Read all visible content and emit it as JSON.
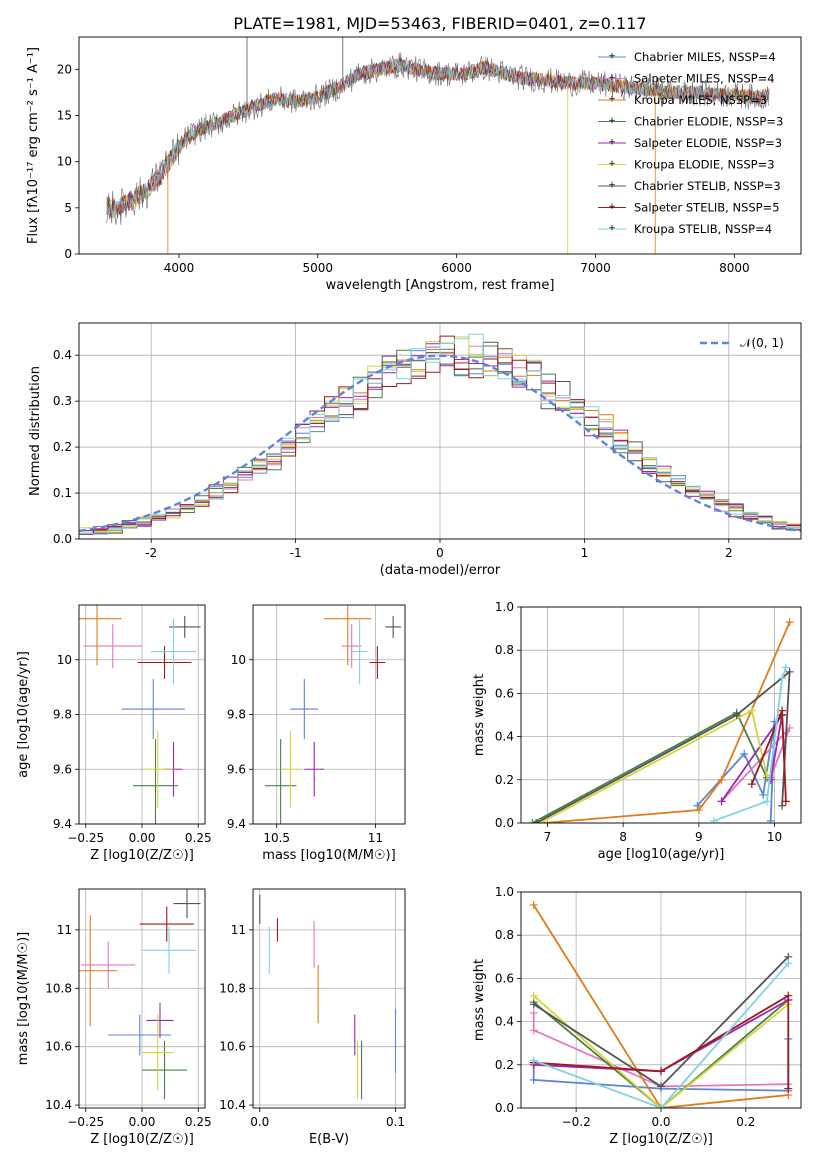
{
  "figure": {
    "title": "PLATE=1981, MJD=53463, FIBERID=0401, z=0.117"
  },
  "chart_data": [
    {
      "id": "spectrum",
      "type": "line",
      "title": "PLATE=1981, MJD=53463, FIBERID=0401, z=0.117",
      "xlabel": "wavelength [Angstrom, rest frame]",
      "ylabel": "Flux [fλ10⁻¹⁷ erg cm⁻² s⁻¹ A⁻¹]",
      "xlim": [
        3280,
        8480
      ],
      "ylim": [
        0,
        23.5
      ],
      "xticks": [
        4000,
        5000,
        6000,
        7000,
        8000
      ],
      "yticks": [
        0,
        5,
        10,
        15,
        20
      ],
      "grid": false,
      "legend_position": "upper-right",
      "x": [
        3480,
        3550,
        3620,
        3700,
        3780,
        3860,
        3950,
        4050,
        4150,
        4250,
        4400,
        4550,
        4700,
        4850,
        5000,
        5150,
        5300,
        5450,
        5600,
        5750,
        5900,
        6050,
        6200,
        6350,
        6500,
        6650,
        6800,
        6950,
        7100,
        7250,
        7400,
        7550,
        7700,
        7850,
        8000,
        8150,
        8250
      ],
      "y": [
        5.2,
        4.8,
        5.5,
        6.2,
        7.0,
        8.5,
        10.5,
        12.5,
        13.5,
        14.0,
        15.0,
        16.0,
        16.8,
        16.5,
        17.0,
        18.0,
        19.5,
        20.0,
        20.5,
        19.8,
        19.5,
        19.5,
        20.2,
        19.5,
        19.0,
        18.8,
        18.5,
        18.5,
        18.3,
        18.0,
        17.8,
        17.5,
        17.5,
        17.3,
        17.2,
        17.0,
        17.2
      ],
      "series": [
        {
          "name": "Chabrier MILES, NSSP=4",
          "color": "#5b85d6"
        },
        {
          "name": "Salpeter MILES, NSSP=4",
          "color": "#e377c2"
        },
        {
          "name": "Kroupa MILES, NSSP=3",
          "color": "#e07b1a"
        },
        {
          "name": "Chabrier ELODIE, NSSP=3",
          "color": "#4a7f4a"
        },
        {
          "name": "Salpeter ELODIE, NSSP=3",
          "color": "#9b27b0"
        },
        {
          "name": "Kroupa ELODIE, NSSP=3",
          "color": "#d4d43a"
        },
        {
          "name": "Chabrier STELIB, NSSP=3",
          "color": "#545454"
        },
        {
          "name": "Salpeter STELIB, NSSP=5",
          "color": "#a01818"
        },
        {
          "name": "Kroupa STELIB, NSSP=4",
          "color": "#7fd3e0"
        }
      ],
      "spikes": [
        {
          "x": 3920,
          "y": 0,
          "color": "#e07b1a"
        },
        {
          "x": 4490,
          "y": 23.5,
          "color": "#545454"
        },
        {
          "x": 5180,
          "y": 23.5,
          "color": "#545454"
        },
        {
          "x": 6800,
          "y": 0,
          "color": "#d4d43a"
        },
        {
          "x": 7430,
          "y": 0,
          "color": "#e07b1a"
        }
      ]
    },
    {
      "id": "residuals",
      "type": "bar",
      "xlabel": "(data-model)/error",
      "ylabel": "Normed distribution",
      "xlim": [
        -2.5,
        2.5
      ],
      "ylim": [
        0,
        0.47
      ],
      "xticks": [
        -2,
        -1,
        0,
        1,
        2
      ],
      "yticks": [
        0.0,
        0.1,
        0.2,
        0.3,
        0.4
      ],
      "grid": true,
      "legend_position": "upper-right",
      "legend": "𝒩(0, 1)",
      "reference": {
        "type": "normal",
        "mean": 0,
        "std": 1,
        "color": "#5b85d6"
      },
      "bin_width": 0.1
    },
    {
      "id": "age-vs-Z",
      "type": "scatter",
      "xlabel": "Z [log10(Z/Z☉)]",
      "ylabel": "age  [log10(age/yr)]",
      "xlim": [
        -0.28,
        0.28
      ],
      "ylim": [
        9.4,
        10.2
      ],
      "xticks": [
        -0.25,
        0.0,
        0.25
      ],
      "xticklabels": [
        "−0.25",
        "0.00",
        "0.25"
      ],
      "yticks": [
        9.4,
        9.6,
        9.8,
        10.0
      ],
      "grid": true,
      "points": [
        {
          "x": 0.05,
          "y": 9.82,
          "xerr": 0.14,
          "yerr": 0.11,
          "color": "#5b85d6"
        },
        {
          "x": -0.13,
          "y": 10.05,
          "xerr": 0.13,
          "yerr": 0.08,
          "color": "#e377c2"
        },
        {
          "x": -0.2,
          "y": 10.15,
          "xerr": 0.11,
          "yerr": 0.17,
          "color": "#e07b1a"
        },
        {
          "x": 0.06,
          "y": 9.54,
          "xerr": 0.1,
          "yerr": 0.17,
          "color": "#4a7f4a"
        },
        {
          "x": 0.14,
          "y": 9.6,
          "xerr": 0.04,
          "yerr": 0.1,
          "color": "#9b27b0"
        },
        {
          "x": 0.07,
          "y": 9.6,
          "xerr": 0.07,
          "yerr": 0.14,
          "color": "#d4d43a"
        },
        {
          "x": 0.19,
          "y": 10.12,
          "xerr": 0.07,
          "yerr": 0.04,
          "color": "#545454"
        },
        {
          "x": 0.1,
          "y": 9.99,
          "xerr": 0.12,
          "yerr": 0.06,
          "color": "#a01818"
        },
        {
          "x": 0.14,
          "y": 10.03,
          "xerr": 0.1,
          "yerr": 0.12,
          "color": "#7fd3e0"
        }
      ]
    },
    {
      "id": "age-vs-mass",
      "type": "scatter",
      "xlabel": "mass [log10(M/M☉)]",
      "ylabel": "",
      "xlim": [
        10.38,
        11.15
      ],
      "ylim": [
        9.4,
        10.2
      ],
      "xticks": [
        10.5,
        11.0
      ],
      "yticks": [
        9.4,
        9.6,
        9.8,
        10.0
      ],
      "grid": true,
      "points": [
        {
          "x": 10.64,
          "y": 9.82,
          "xerr": 0.07,
          "yerr": 0.11,
          "color": "#5b85d6"
        },
        {
          "x": 10.88,
          "y": 10.05,
          "xerr": 0.05,
          "yerr": 0.08,
          "color": "#e377c2"
        },
        {
          "x": 10.86,
          "y": 10.15,
          "xerr": 0.12,
          "yerr": 0.17,
          "color": "#e07b1a"
        },
        {
          "x": 10.52,
          "y": 9.54,
          "xerr": 0.08,
          "yerr": 0.17,
          "color": "#4a7f4a"
        },
        {
          "x": 10.69,
          "y": 9.6,
          "xerr": 0.05,
          "yerr": 0.1,
          "color": "#9b27b0"
        },
        {
          "x": 10.57,
          "y": 9.6,
          "xerr": 0.05,
          "yerr": 0.14,
          "color": "#d4d43a"
        },
        {
          "x": 11.09,
          "y": 10.12,
          "xerr": 0.04,
          "yerr": 0.04,
          "color": "#545454"
        },
        {
          "x": 11.01,
          "y": 9.99,
          "xerr": 0.04,
          "yerr": 0.06,
          "color": "#a01818"
        },
        {
          "x": 10.92,
          "y": 10.03,
          "xerr": 0.04,
          "yerr": 0.12,
          "color": "#7fd3e0"
        }
      ]
    },
    {
      "id": "weight-vs-age",
      "type": "line",
      "xlabel": "age  [log10(age/yr)]",
      "ylabel": "mass weight",
      "xlim": [
        6.65,
        10.35
      ],
      "ylim": [
        0.0,
        1.0
      ],
      "xticks": [
        7,
        8,
        9,
        10
      ],
      "yticks": [
        0.0,
        0.2,
        0.4,
        0.6,
        0.8,
        1.0
      ],
      "grid": true,
      "series": [
        {
          "color": "#5b85d6",
          "x": [
            8.98,
            9.6,
            9.85,
            10.0,
            9.95
          ],
          "y": [
            0.08,
            0.32,
            0.13,
            0.47,
            0.01
          ]
        },
        {
          "color": "#e377c2",
          "x": [
            9.3,
            10.2,
            9.95
          ],
          "y": [
            0.1,
            0.44,
            0.21
          ]
        },
        {
          "color": "#e07b1a",
          "x": [
            6.95,
            9.0,
            9.3,
            10.2
          ],
          "y": [
            0.0,
            0.06,
            0.2,
            0.93
          ]
        },
        {
          "color": "#4a7f4a",
          "x": [
            6.8,
            9.5,
            9.9
          ],
          "y": [
            0.0,
            0.51,
            0.21
          ]
        },
        {
          "color": "#9b27b0",
          "x": [
            9.3,
            10.1,
            9.95
          ],
          "y": [
            0.1,
            0.5,
            0.2
          ]
        },
        {
          "color": "#d4d43a",
          "x": [
            6.9,
            9.7,
            9.9
          ],
          "y": [
            0.0,
            0.52,
            0.22
          ]
        },
        {
          "color": "#545454",
          "x": [
            6.85,
            9.5,
            10.2,
            10.1
          ],
          "y": [
            0.0,
            0.5,
            0.7,
            0.08
          ]
        },
        {
          "color": "#a01818",
          "x": [
            9.7,
            10.1,
            10.15,
            10.1
          ],
          "y": [
            0.18,
            0.52,
            0.1,
            0.5
          ]
        },
        {
          "color": "#7fd3e0",
          "x": [
            9.2,
            9.9,
            10.1,
            10.15
          ],
          "y": [
            0.01,
            0.1,
            0.67,
            0.72
          ]
        }
      ]
    },
    {
      "id": "mass-vs-Z",
      "type": "scatter",
      "xlabel": "Z [log10(Z/Z☉)]",
      "ylabel": "mass [log10(M/M☉)]",
      "xlim": [
        -0.28,
        0.28
      ],
      "ylim": [
        10.39,
        11.14
      ],
      "xticks": [
        -0.25,
        0.0,
        0.25
      ],
      "xticklabels": [
        "−0.25",
        "0.00",
        "0.25"
      ],
      "yticks": [
        10.4,
        10.6,
        10.8,
        11.0
      ],
      "grid": true,
      "points": [
        {
          "x": -0.01,
          "y": 10.64,
          "xerr": 0.14,
          "yerr": 0.07,
          "color": "#5b85d6"
        },
        {
          "x": -0.15,
          "y": 10.88,
          "xerr": 0.12,
          "yerr": 0.08,
          "color": "#e377c2"
        },
        {
          "x": -0.23,
          "y": 10.86,
          "xerr": 0.12,
          "yerr": 0.19,
          "color": "#e07b1a"
        },
        {
          "x": 0.1,
          "y": 10.52,
          "xerr": 0.1,
          "yerr": 0.1,
          "color": "#4a7f4a"
        },
        {
          "x": 0.08,
          "y": 10.69,
          "xerr": 0.06,
          "yerr": 0.06,
          "color": "#9b27b0"
        },
        {
          "x": 0.07,
          "y": 10.58,
          "xerr": 0.07,
          "yerr": 0.13,
          "color": "#d4d43a"
        },
        {
          "x": 0.2,
          "y": 11.09,
          "xerr": 0.06,
          "yerr": 0.05,
          "color": "#545454"
        },
        {
          "x": 0.11,
          "y": 11.02,
          "xerr": 0.12,
          "yerr": 0.06,
          "color": "#a01818"
        },
        {
          "x": 0.12,
          "y": 10.93,
          "xerr": 0.12,
          "yerr": 0.08,
          "color": "#7fd3e0"
        }
      ]
    },
    {
      "id": "mass-vs-EBV",
      "type": "scatter",
      "xlabel": "E(B-V)",
      "ylabel": "",
      "xlim": [
        -0.005,
        0.107
      ],
      "ylim": [
        10.39,
        11.14
      ],
      "xticks": [
        0.0,
        0.1
      ],
      "xticklabels": [
        "0.0",
        "0.1"
      ],
      "yticks": [
        10.4,
        10.6,
        10.8,
        11.0
      ],
      "grid": true,
      "points": [
        {
          "x": 0.1,
          "y": 10.62,
          "xerr": 0.0,
          "yerr": 0.11,
          "color": "#5b85d6"
        },
        {
          "x": 0.04,
          "y": 10.95,
          "xerr": 0.0,
          "yerr": 0.08,
          "color": "#e377c2"
        },
        {
          "x": 0.043,
          "y": 10.78,
          "xerr": 0.0,
          "yerr": 0.1,
          "color": "#e07b1a"
        },
        {
          "x": 0.075,
          "y": 10.52,
          "xerr": 0.0,
          "yerr": 0.1,
          "color": "#4a7f4a"
        },
        {
          "x": 0.07,
          "y": 10.64,
          "xerr": 0.0,
          "yerr": 0.07,
          "color": "#9b27b0"
        },
        {
          "x": 0.072,
          "y": 10.52,
          "xerr": 0.0,
          "yerr": 0.1,
          "color": "#d4d43a"
        },
        {
          "x": 0.0,
          "y": 11.07,
          "xerr": 0.0,
          "yerr": 0.05,
          "color": "#545454"
        },
        {
          "x": 0.013,
          "y": 11.0,
          "xerr": 0.0,
          "yerr": 0.04,
          "color": "#a01818"
        },
        {
          "x": 0.007,
          "y": 10.93,
          "xerr": 0.0,
          "yerr": 0.08,
          "color": "#7fd3e0"
        }
      ]
    },
    {
      "id": "weight-vs-Z",
      "type": "line",
      "xlabel": "Z [log10(Z/Z☉)]",
      "ylabel": "mass weight",
      "xlim": [
        -0.33,
        0.33
      ],
      "ylim": [
        0.0,
        1.0
      ],
      "xticks": [
        -0.2,
        0.0,
        0.2
      ],
      "xticklabels": [
        "−0.2",
        "0.0",
        "0.2"
      ],
      "yticks": [
        0.0,
        0.2,
        0.4,
        0.6,
        0.8,
        1.0
      ],
      "grid": true,
      "series": [
        {
          "color": "#5b85d6",
          "x": [
            -0.3,
            -0.3,
            0.0,
            0.3,
            0.3
          ],
          "y": [
            0.21,
            0.13,
            0.09,
            0.08,
            0.32
          ]
        },
        {
          "color": "#e377c2",
          "x": [
            -0.3,
            -0.3,
            0.0,
            0.3
          ],
          "y": [
            0.44,
            0.36,
            0.1,
            0.11
          ]
        },
        {
          "color": "#e07b1a",
          "x": [
            -0.3,
            0.0,
            0.3
          ],
          "y": [
            0.94,
            0.0,
            0.06
          ]
        },
        {
          "color": "#4a7f4a",
          "x": [
            -0.3,
            0.0,
            0.3
          ],
          "y": [
            0.49,
            0.0,
            0.5
          ]
        },
        {
          "color": "#9b27b0",
          "x": [
            -0.3,
            0.0,
            0.3
          ],
          "y": [
            0.2,
            0.17,
            0.5
          ]
        },
        {
          "color": "#d4d43a",
          "x": [
            -0.3,
            0.0,
            0.3
          ],
          "y": [
            0.52,
            0.0,
            0.48
          ]
        },
        {
          "color": "#545454",
          "x": [
            -0.3,
            0.0,
            0.3
          ],
          "y": [
            0.48,
            0.1,
            0.7
          ]
        },
        {
          "color": "#a01818",
          "x": [
            -0.3,
            0.0,
            0.3,
            0.3
          ],
          "y": [
            0.21,
            0.17,
            0.52,
            0.09
          ]
        },
        {
          "color": "#7fd3e0",
          "x": [
            -0.3,
            0.0,
            0.3
          ],
          "y": [
            0.22,
            0.0,
            0.67
          ]
        }
      ]
    }
  ]
}
